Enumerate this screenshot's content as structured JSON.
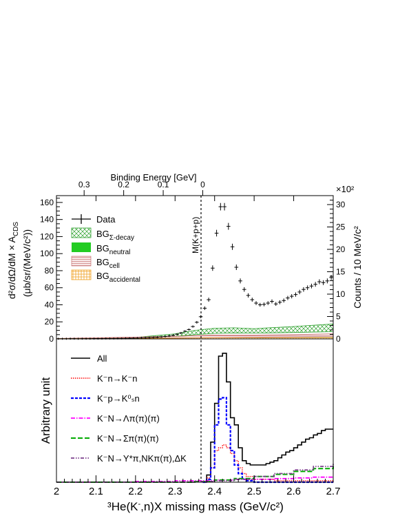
{
  "chart_data": [
    {
      "type": "scatter",
      "panel": "top",
      "top_axis": {
        "label": "Binding Energy [GeV]",
        "ticks": [
          {
            "value": 0.3,
            "label": "0.3"
          },
          {
            "value": 0.2,
            "label": "0.2"
          },
          {
            "value": 0.1,
            "label": "0.1"
          },
          {
            "value": 0.0,
            "label": "0"
          }
        ]
      },
      "ylabel_line1": "d²σ/dΩ/dM × A",
      "ylabel_sub": "CDS",
      "ylabel_line2": "(μb/sr/(MeV/c²))",
      "ylim": [
        0,
        168
      ],
      "yticks": [
        0,
        20,
        40,
        60,
        80,
        100,
        120,
        140,
        160
      ],
      "right_axis": {
        "label": "Counts / 10 MeV/c²",
        "multiplier": "×10²",
        "ylim": [
          0,
          32
        ],
        "ticks": [
          0,
          5,
          10,
          15,
          20,
          25,
          30
        ]
      },
      "vline": {
        "x": 2.37,
        "label": "M(K+p+p)"
      },
      "legend": [
        {
          "label": "Data",
          "sub": ""
        },
        {
          "label": "BG",
          "sub": "Σ-decay"
        },
        {
          "label": "BG",
          "sub": "neutral"
        },
        {
          "label": "BG",
          "sub": "cell"
        },
        {
          "label": "BG",
          "sub": "accidental"
        }
      ],
      "series": [
        {
          "name": "Data",
          "color": "#000000",
          "points": [
            [
              2.005,
              0.2
            ],
            [
              2.015,
              0.2
            ],
            [
              2.025,
              0.2
            ],
            [
              2.035,
              0.3
            ],
            [
              2.045,
              0.3
            ],
            [
              2.055,
              0.2
            ],
            [
              2.065,
              0.3
            ],
            [
              2.075,
              0.3
            ],
            [
              2.085,
              0.3
            ],
            [
              2.095,
              0.4
            ],
            [
              2.105,
              0.4
            ],
            [
              2.115,
              0.4
            ],
            [
              2.125,
              0.5
            ],
            [
              2.135,
              0.5
            ],
            [
              2.145,
              0.5
            ],
            [
              2.155,
              0.6
            ],
            [
              2.165,
              0.6
            ],
            [
              2.175,
              0.7
            ],
            [
              2.185,
              0.8
            ],
            [
              2.195,
              0.9
            ],
            [
              2.205,
              1.0
            ],
            [
              2.215,
              1.2
            ],
            [
              2.225,
              1.3
            ],
            [
              2.235,
              1.5
            ],
            [
              2.245,
              1.8
            ],
            [
              2.255,
              2.0
            ],
            [
              2.265,
              2.4
            ],
            [
              2.275,
              2.8
            ],
            [
              2.285,
              3.4
            ],
            [
              2.295,
              4.2
            ],
            [
              2.305,
              5.5
            ],
            [
              2.315,
              7.0
            ],
            [
              2.325,
              9.0
            ],
            [
              2.335,
              11.0
            ],
            [
              2.345,
              14.5
            ],
            [
              2.355,
              19.5
            ],
            [
              2.365,
              26.0
            ],
            [
              2.375,
              36.0
            ],
            [
              2.385,
              46.0
            ],
            [
              2.395,
              83.0
            ],
            [
              2.405,
              124.0
            ],
            [
              2.415,
              155.0
            ],
            [
              2.425,
              155.0
            ],
            [
              2.435,
              132.0
            ],
            [
              2.445,
              108.0
            ],
            [
              2.455,
              84.0
            ],
            [
              2.465,
              68.0
            ],
            [
              2.475,
              58.0
            ],
            [
              2.485,
              51.0
            ],
            [
              2.495,
              46.0
            ],
            [
              2.505,
              42.0
            ],
            [
              2.515,
              40.0
            ],
            [
              2.525,
              40.5
            ],
            [
              2.535,
              42.0
            ],
            [
              2.545,
              44.0
            ],
            [
              2.555,
              41.0
            ],
            [
              2.565,
              43.0
            ],
            [
              2.575,
              45.0
            ],
            [
              2.585,
              48.0
            ],
            [
              2.595,
              50.0
            ],
            [
              2.605,
              52.0
            ],
            [
              2.615,
              55.0
            ],
            [
              2.625,
              58.0
            ],
            [
              2.635,
              60.0
            ],
            [
              2.645,
              62.0
            ],
            [
              2.655,
              64.0
            ],
            [
              2.665,
              67.0
            ],
            [
              2.675,
              66.0
            ],
            [
              2.685,
              68.0
            ],
            [
              2.695,
              72.0
            ]
          ]
        },
        {
          "name": "BG Σ-decay",
          "color": "#2ca02c",
          "lower": [
            [
              2.0,
              0.0
            ],
            [
              2.2,
              0.8
            ],
            [
              2.3,
              3.0
            ],
            [
              2.35,
              5.0
            ],
            [
              2.4,
              6.5
            ],
            [
              2.45,
              7.0
            ],
            [
              2.5,
              6.8
            ],
            [
              2.6,
              7.5
            ],
            [
              2.7,
              8.5
            ]
          ],
          "upper": [
            [
              2.0,
              0.2
            ],
            [
              2.2,
              1.8
            ],
            [
              2.3,
              6.0
            ],
            [
              2.35,
              10.0
            ],
            [
              2.4,
              12.5
            ],
            [
              2.45,
              13.0
            ],
            [
              2.5,
              12.0
            ],
            [
              2.6,
              14.5
            ],
            [
              2.7,
              17.5
            ]
          ]
        },
        {
          "name": "BG neutral",
          "color": "#22cc22",
          "lower": [
            [
              2.0,
              0.0
            ],
            [
              2.7,
              0.0
            ]
          ],
          "upper": [
            [
              2.0,
              0.0
            ],
            [
              2.3,
              0.5
            ],
            [
              2.4,
              1.0
            ],
            [
              2.5,
              1.2
            ],
            [
              2.7,
              1.5
            ]
          ]
        },
        {
          "name": "BG cell",
          "color": "#d48a8a",
          "lower": [
            [
              2.0,
              0.0
            ],
            [
              2.3,
              1.0
            ],
            [
              2.4,
              1.5
            ],
            [
              2.5,
              2.0
            ],
            [
              2.7,
              2.5
            ]
          ],
          "upper": [
            [
              2.0,
              0.5
            ],
            [
              2.3,
              3.0
            ],
            [
              2.4,
              4.5
            ],
            [
              2.5,
              4.5
            ],
            [
              2.6,
              5.0
            ],
            [
              2.7,
              6.0
            ]
          ]
        },
        {
          "name": "BG accidental",
          "color": "#f0a020",
          "lower": [
            [
              2.0,
              0.0
            ],
            [
              2.7,
              0.0
            ]
          ],
          "upper": [
            [
              2.0,
              0.3
            ],
            [
              2.3,
              0.8
            ],
            [
              2.4,
              1.2
            ],
            [
              2.5,
              1.2
            ],
            [
              2.7,
              1.4
            ]
          ]
        }
      ]
    },
    {
      "type": "line",
      "panel": "bottom",
      "ylabel": "Arbitrary unit",
      "xlabel_pre": "³He(K",
      "xlabel_sup": "-",
      "xlabel_post": ",n)X missing mass (GeV/c²)",
      "xlim": [
        2.0,
        2.7
      ],
      "ylim": [
        0,
        1.0
      ],
      "xticks": [
        {
          "value": 2.0,
          "label": "2"
        },
        {
          "value": 2.1,
          "label": "2.1"
        },
        {
          "value": 2.2,
          "label": "2.2"
        },
        {
          "value": 2.3,
          "label": "2.3"
        },
        {
          "value": 2.4,
          "label": "2.4"
        },
        {
          "value": 2.5,
          "label": "2.5"
        },
        {
          "value": 2.6,
          "label": "2.6"
        },
        {
          "value": 2.7,
          "label": "2.7"
        }
      ],
      "legend": [
        {
          "label": "All",
          "style": "solid",
          "color": "#000000"
        },
        {
          "label": "K⁻n→K⁻n",
          "style": "dotted",
          "color": "#ff0000"
        },
        {
          "label": "K⁻p→K⁰ₛn",
          "style": "dashed",
          "color": "#0000ff"
        },
        {
          "label": "K⁻N→Λπ(π)(π)",
          "style": "dashdot",
          "color": "#ff00ff"
        },
        {
          "label": "K⁻N→Σπ(π)(π)",
          "style": "longdash",
          "color": "#00aa00"
        },
        {
          "label": "K⁻N→Y*π,NKπ(π),ΔK",
          "style": "dashdotdot",
          "color": "#7b3f8c"
        }
      ],
      "series": [
        {
          "name": "All",
          "color": "#000000",
          "points": [
            [
              2.37,
              0.0
            ],
            [
              2.38,
              0.05
            ],
            [
              2.39,
              0.28
            ],
            [
              2.4,
              0.55
            ],
            [
              2.41,
              0.88
            ],
            [
              2.42,
              0.9
            ],
            [
              2.43,
              0.7
            ],
            [
              2.44,
              0.45
            ],
            [
              2.45,
              0.4
            ],
            [
              2.46,
              0.24
            ],
            [
              2.47,
              0.15
            ],
            [
              2.48,
              0.13
            ],
            [
              2.49,
              0.12
            ],
            [
              2.5,
              0.12
            ],
            [
              2.51,
              0.12
            ],
            [
              2.52,
              0.12
            ],
            [
              2.53,
              0.13
            ],
            [
              2.54,
              0.14
            ],
            [
              2.55,
              0.15
            ],
            [
              2.56,
              0.17
            ],
            [
              2.57,
              0.19
            ],
            [
              2.58,
              0.21
            ],
            [
              2.59,
              0.22
            ],
            [
              2.6,
              0.24
            ],
            [
              2.61,
              0.26
            ],
            [
              2.62,
              0.28
            ],
            [
              2.63,
              0.3
            ],
            [
              2.64,
              0.31
            ],
            [
              2.65,
              0.33
            ],
            [
              2.66,
              0.34
            ],
            [
              2.67,
              0.36
            ],
            [
              2.68,
              0.37
            ],
            [
              2.69,
              0.37
            ],
            [
              2.7,
              0.37
            ]
          ]
        },
        {
          "name": "K⁻n→K⁻n",
          "color": "#ff0000",
          "points": [
            [
              2.37,
              0.0
            ],
            [
              2.38,
              0.03
            ],
            [
              2.39,
              0.1
            ],
            [
              2.4,
              0.22
            ],
            [
              2.41,
              0.24
            ],
            [
              2.42,
              0.26
            ],
            [
              2.43,
              0.24
            ],
            [
              2.44,
              0.2
            ],
            [
              2.45,
              0.15
            ],
            [
              2.46,
              0.1
            ],
            [
              2.47,
              0.06
            ],
            [
              2.48,
              0.04
            ],
            [
              2.5,
              0.02
            ],
            [
              2.55,
              0.01
            ],
            [
              2.7,
              0.0
            ]
          ]
        },
        {
          "name": "K⁻p→K⁰ₛn",
          "color": "#0000ff",
          "points": [
            [
              2.37,
              0.0
            ],
            [
              2.38,
              0.02
            ],
            [
              2.39,
              0.1
            ],
            [
              2.4,
              0.4
            ],
            [
              2.41,
              0.58
            ],
            [
              2.42,
              0.59
            ],
            [
              2.43,
              0.4
            ],
            [
              2.44,
              0.22
            ],
            [
              2.45,
              0.12
            ],
            [
              2.46,
              0.06
            ],
            [
              2.47,
              0.02
            ],
            [
              2.48,
              0.01
            ],
            [
              2.5,
              0.0
            ],
            [
              2.7,
              0.0
            ]
          ]
        },
        {
          "name": "K⁻N→Λπ(π)(π)",
          "color": "#ff00ff",
          "points": [
            [
              2.0,
              0.0
            ],
            [
              2.2,
              0.005
            ],
            [
              2.3,
              0.01
            ],
            [
              2.4,
              0.015
            ],
            [
              2.45,
              0.02
            ],
            [
              2.5,
              0.02
            ],
            [
              2.55,
              0.025
            ],
            [
              2.6,
              0.03
            ],
            [
              2.65,
              0.035
            ],
            [
              2.7,
              0.04
            ]
          ]
        },
        {
          "name": "K⁻N→Σπ(π)(π)",
          "color": "#00aa00",
          "points": [
            [
              2.0,
              0.0
            ],
            [
              2.3,
              0.0
            ],
            [
              2.35,
              0.005
            ],
            [
              2.4,
              0.015
            ],
            [
              2.45,
              0.025
            ],
            [
              2.5,
              0.04
            ],
            [
              2.55,
              0.055
            ],
            [
              2.6,
              0.075
            ],
            [
              2.65,
              0.095
            ],
            [
              2.7,
              0.115
            ]
          ]
        },
        {
          "name": "K⁻N→Y*π,NKπ(π),ΔK",
          "color": "#7b3f8c",
          "points": [
            [
              2.0,
              0.0
            ],
            [
              2.3,
              0.0
            ],
            [
              2.35,
              0.005
            ],
            [
              2.4,
              0.01
            ],
            [
              2.45,
              0.02
            ],
            [
              2.5,
              0.04
            ],
            [
              2.55,
              0.06
            ],
            [
              2.6,
              0.085
            ],
            [
              2.65,
              0.11
            ],
            [
              2.7,
              0.135
            ]
          ]
        }
      ]
    }
  ]
}
